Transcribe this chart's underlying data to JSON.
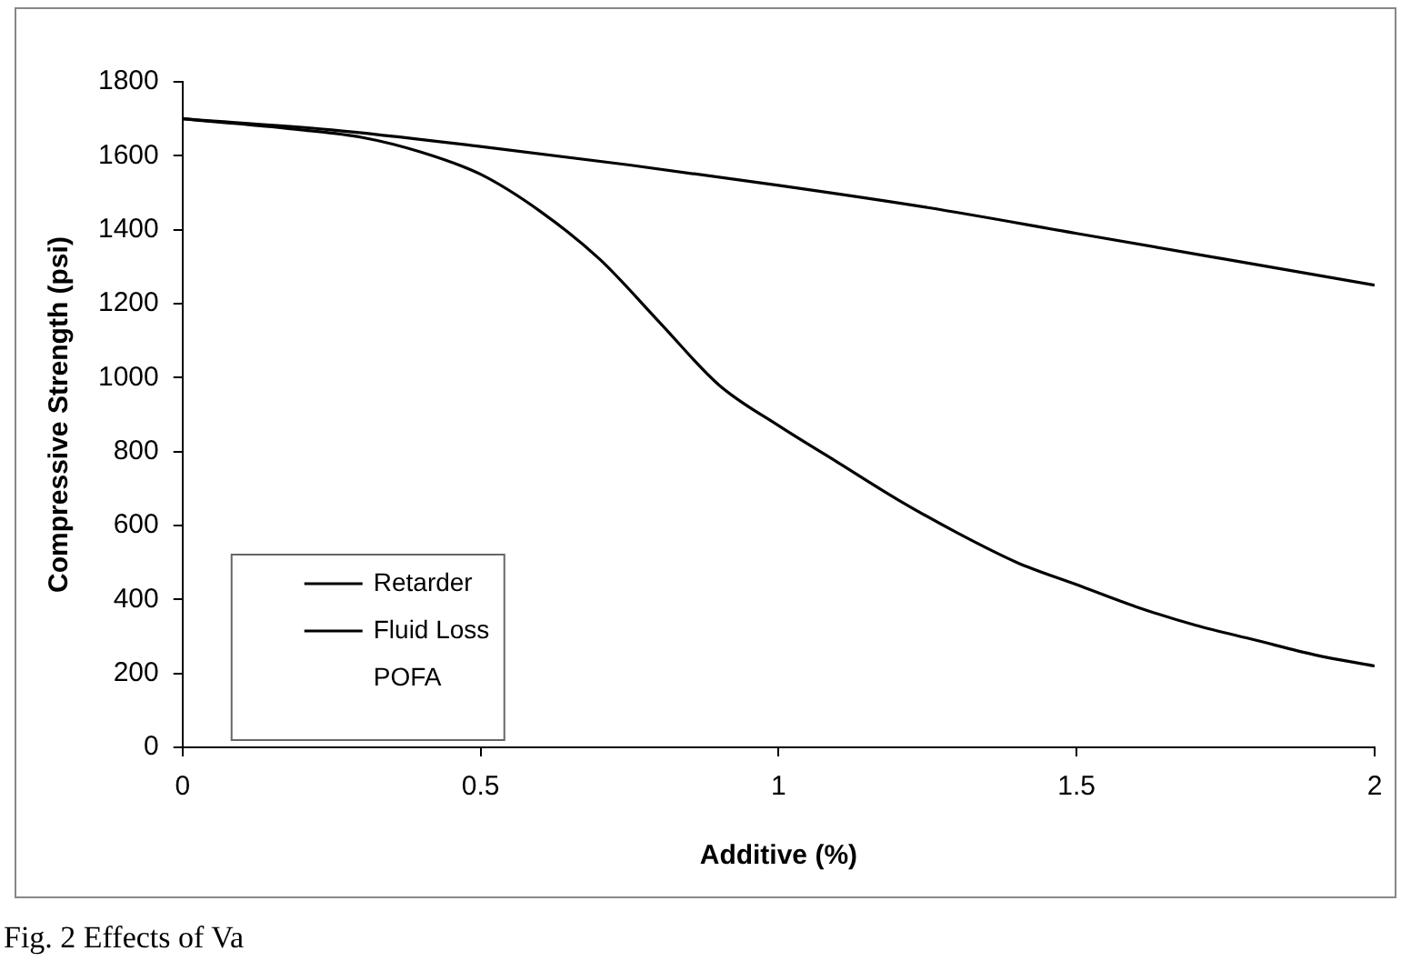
{
  "chart_data": {
    "type": "line",
    "xlabel": "Additive (%)",
    "ylabel": "Compressive Strength (psi)",
    "xlim": [
      0,
      2
    ],
    "xticks": [
      0,
      0.5,
      1,
      1.5,
      2
    ],
    "ylim": [
      0,
      1800
    ],
    "yticks": [
      0,
      200,
      400,
      600,
      800,
      1000,
      1200,
      1400,
      1600,
      1800
    ],
    "grid": false,
    "legend": "bottom left",
    "marker": "none",
    "line_style": "solid",
    "annotations": [
      "Fig. 2 Effects of Va"
    ],
    "series": [
      {
        "name": "Retarder",
        "color": "#000000",
        "x": [
          0,
          0.25,
          0.5,
          0.75,
          1,
          1.25,
          1.5,
          1.75,
          2
        ],
        "values": [
          1700,
          1670,
          1625,
          1575,
          1520,
          1460,
          1390,
          1320,
          1250
        ]
      },
      {
        "name": "Fluid Loss",
        "color": "#000000",
        "x": [
          0,
          0.2,
          0.3,
          0.4,
          0.5,
          0.6,
          0.7,
          0.8,
          0.9,
          1,
          1.1,
          1.2,
          1.3,
          1.4,
          1.5,
          1.6,
          1.7,
          1.8,
          1.9,
          2
        ],
        "values": [
          1700,
          1670,
          1650,
          1610,
          1550,
          1450,
          1320,
          1150,
          980,
          870,
          770,
          670,
          580,
          500,
          440,
          380,
          330,
          290,
          250,
          220
        ]
      },
      {
        "name": "POFA"
      }
    ]
  }
}
